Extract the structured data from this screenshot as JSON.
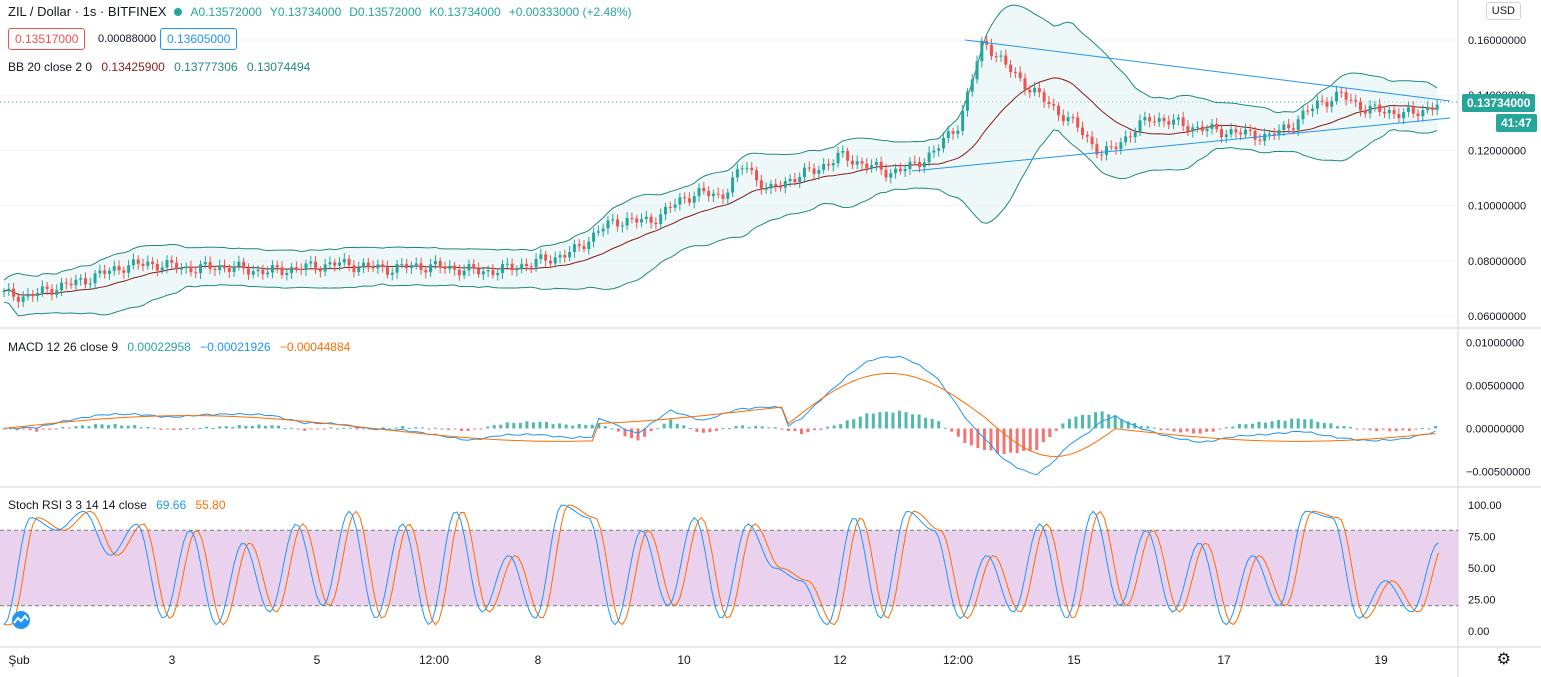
{
  "header": {
    "symbol": "ZIL / Dollar · 1s · BITFINEX",
    "status_color": "#26a69a",
    "open": "A0.13572000",
    "high": "Y0.13734000",
    "low": "D0.13572000",
    "close": "K0.13734000",
    "change": "+0.00333000 (+2.48%)",
    "sell_price": "0.13517000",
    "spread": "0.00088000",
    "buy_price": "0.13605000",
    "currency": "USD"
  },
  "indicators": {
    "bb": {
      "name": "BB 20 close 2 0",
      "basis": "0.13425900",
      "upper": "0.13777306",
      "lower": "0.13074494"
    },
    "macd": {
      "name": "MACD 12 26 close 9",
      "hist": "0.00022958",
      "macd": "−0.00021926",
      "signal": "−0.00044884"
    },
    "stoch": {
      "name": "Stoch RSI 3 3 14 14 close",
      "k": "69.66",
      "d": "55.80"
    }
  },
  "price_axis": {
    "ticks": [
      "0.16000000",
      "0.14000000",
      "0.12000000",
      "0.10000000",
      "0.08000000",
      "0.06000000"
    ],
    "last_price": "0.13734000",
    "countdown": "41:47"
  },
  "macd_axis": {
    "ticks": [
      "0.01000000",
      "0.00500000",
      "0.00000000",
      "−0.00500000"
    ]
  },
  "stoch_axis": {
    "ticks": [
      "100.00",
      "75.00",
      "50.00",
      "25.00",
      "0.00"
    ]
  },
  "time_axis": {
    "ticks": [
      "Şub",
      "3",
      "5",
      "12:00",
      "8",
      "10",
      "12",
      "12:00",
      "15",
      "17",
      "19"
    ]
  },
  "colors": {
    "up": "#26a69a",
    "down": "#ef5350",
    "bb_band": "#1f8a7a",
    "bb_basis": "#8b1a1a",
    "trendline": "#2196f3",
    "macd_line": "#2196f3",
    "signal_line": "#ff6d00",
    "stoch_k": "#2196f3",
    "stoch_d": "#ff6d00",
    "stoch_fill": "#e1bee7"
  },
  "chart_data": {
    "type": "candlestick",
    "approx_close_path": [
      0.068,
      0.067,
      0.07,
      0.072,
      0.075,
      0.078,
      0.079,
      0.078,
      0.077,
      0.078,
      0.077,
      0.076,
      0.077,
      0.078,
      0.079,
      0.078,
      0.077,
      0.078,
      0.078,
      0.077,
      0.076,
      0.077,
      0.079,
      0.081,
      0.084,
      0.092,
      0.095,
      0.094,
      0.1,
      0.105,
      0.103,
      0.115,
      0.105,
      0.11,
      0.113,
      0.118,
      0.115,
      0.112,
      0.114,
      0.12,
      0.13,
      0.16,
      0.15,
      0.142,
      0.135,
      0.128,
      0.118,
      0.125,
      0.132,
      0.13,
      0.128,
      0.127,
      0.126,
      0.125,
      0.13,
      0.137,
      0.14,
      0.135,
      0.134,
      0.133,
      0.137
    ],
    "macd_hist_path": [
      0,
      -0.0003,
      0.0002,
      0.0005,
      0.0003,
      -0.0002,
      0.0001,
      0.0003,
      0.0004,
      -0.0002,
      0.0001,
      -0.0001,
      0.0002,
      0,
      -0.0003,
      0.0006,
      0.0008,
      0.0004,
      0.0005,
      -0.0015,
      0.001,
      -0.0006,
      0.0003,
      0.0002,
      -0.0006,
      0.0004,
      0.0018,
      0.002,
      0.001,
      -0.002,
      -0.003,
      -0.0025,
      0.0012,
      0.002,
      0.0005,
      -0.0003,
      -0.0006,
      0.0004,
      0.0008,
      0.0012,
      0.0004,
      -0.0002,
      -0.0003,
      0.0002
    ],
    "stoch_k_path": [
      5,
      90,
      80,
      95,
      60,
      85,
      10,
      80,
      5,
      70,
      15,
      85,
      20,
      95,
      10,
      85,
      5,
      95,
      15,
      60,
      10,
      100,
      90,
      5,
      80,
      20,
      90,
      10,
      85,
      50,
      40,
      5,
      90,
      10,
      95,
      80,
      10,
      60,
      15,
      85,
      10,
      95,
      20,
      80,
      15,
      70,
      5,
      60,
      20,
      95,
      90,
      10,
      40,
      15,
      70
    ]
  }
}
